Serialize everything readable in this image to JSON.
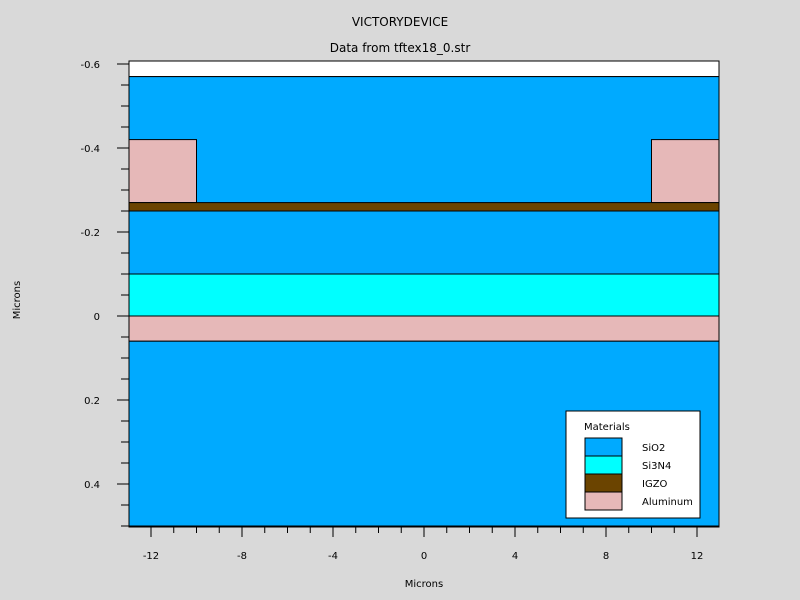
{
  "title": "VICTORYDEVICE",
  "subtitle": "Data from tftex18_0.str",
  "colors": {
    "background": "#d9d9d9",
    "SiO2": "#00aaff",
    "Si3N4": "#00ffff",
    "IGZO": "#6b4400",
    "Aluminum": "#e6b8b8",
    "void": "#ffffff"
  },
  "chart_data": {
    "type": "cross-section",
    "xlabel": "Microns",
    "ylabel": "Microns",
    "xlim": [
      -13,
      13
    ],
    "ylim": [
      -0.6,
      0.5
    ],
    "y_inverted": true,
    "x_ticks": [
      -12,
      -8,
      -4,
      0,
      4,
      8,
      12
    ],
    "x_tick_labels": [
      "-12",
      "-8",
      "-4",
      "0",
      "4",
      "8",
      "12"
    ],
    "y_ticks": [
      -0.6,
      -0.4,
      -0.2,
      0,
      0.2,
      0.4
    ],
    "y_tick_labels": [
      "-0.6",
      "-0.4",
      "-0.2",
      "0",
      "0.2",
      "0.4"
    ],
    "regions": [
      {
        "material": "void",
        "x": [
          -13,
          13
        ],
        "y": [
          -0.62,
          -0.57
        ]
      },
      {
        "material": "SiO2",
        "x": [
          -13,
          13
        ],
        "y": [
          -0.57,
          -0.265
        ]
      },
      {
        "material": "Aluminum",
        "x": [
          -13,
          -10
        ],
        "y": [
          -0.42,
          -0.27
        ]
      },
      {
        "material": "Aluminum",
        "x": [
          10,
          13
        ],
        "y": [
          -0.42,
          -0.27
        ]
      },
      {
        "material": "IGZO",
        "x": [
          -13,
          13
        ],
        "y": [
          -0.27,
          -0.25
        ]
      },
      {
        "material": "SiO2",
        "x": [
          -13,
          13
        ],
        "y": [
          -0.25,
          -0.1
        ]
      },
      {
        "material": "Si3N4",
        "x": [
          -13,
          13
        ],
        "y": [
          -0.1,
          0
        ]
      },
      {
        "material": "Aluminum",
        "x": [
          -13,
          13
        ],
        "y": [
          0,
          0.06
        ]
      },
      {
        "material": "SiO2",
        "x": [
          -13,
          13
        ],
        "y": [
          0.06,
          0.5
        ]
      }
    ],
    "legend": {
      "title": "Materials",
      "position": "bottom-right",
      "entries": [
        {
          "label": "SiO2",
          "material": "SiO2"
        },
        {
          "label": "Si3N4",
          "material": "Si3N4"
        },
        {
          "label": "IGZO",
          "material": "IGZO"
        },
        {
          "label": "Aluminum",
          "material": "Aluminum"
        }
      ]
    }
  }
}
